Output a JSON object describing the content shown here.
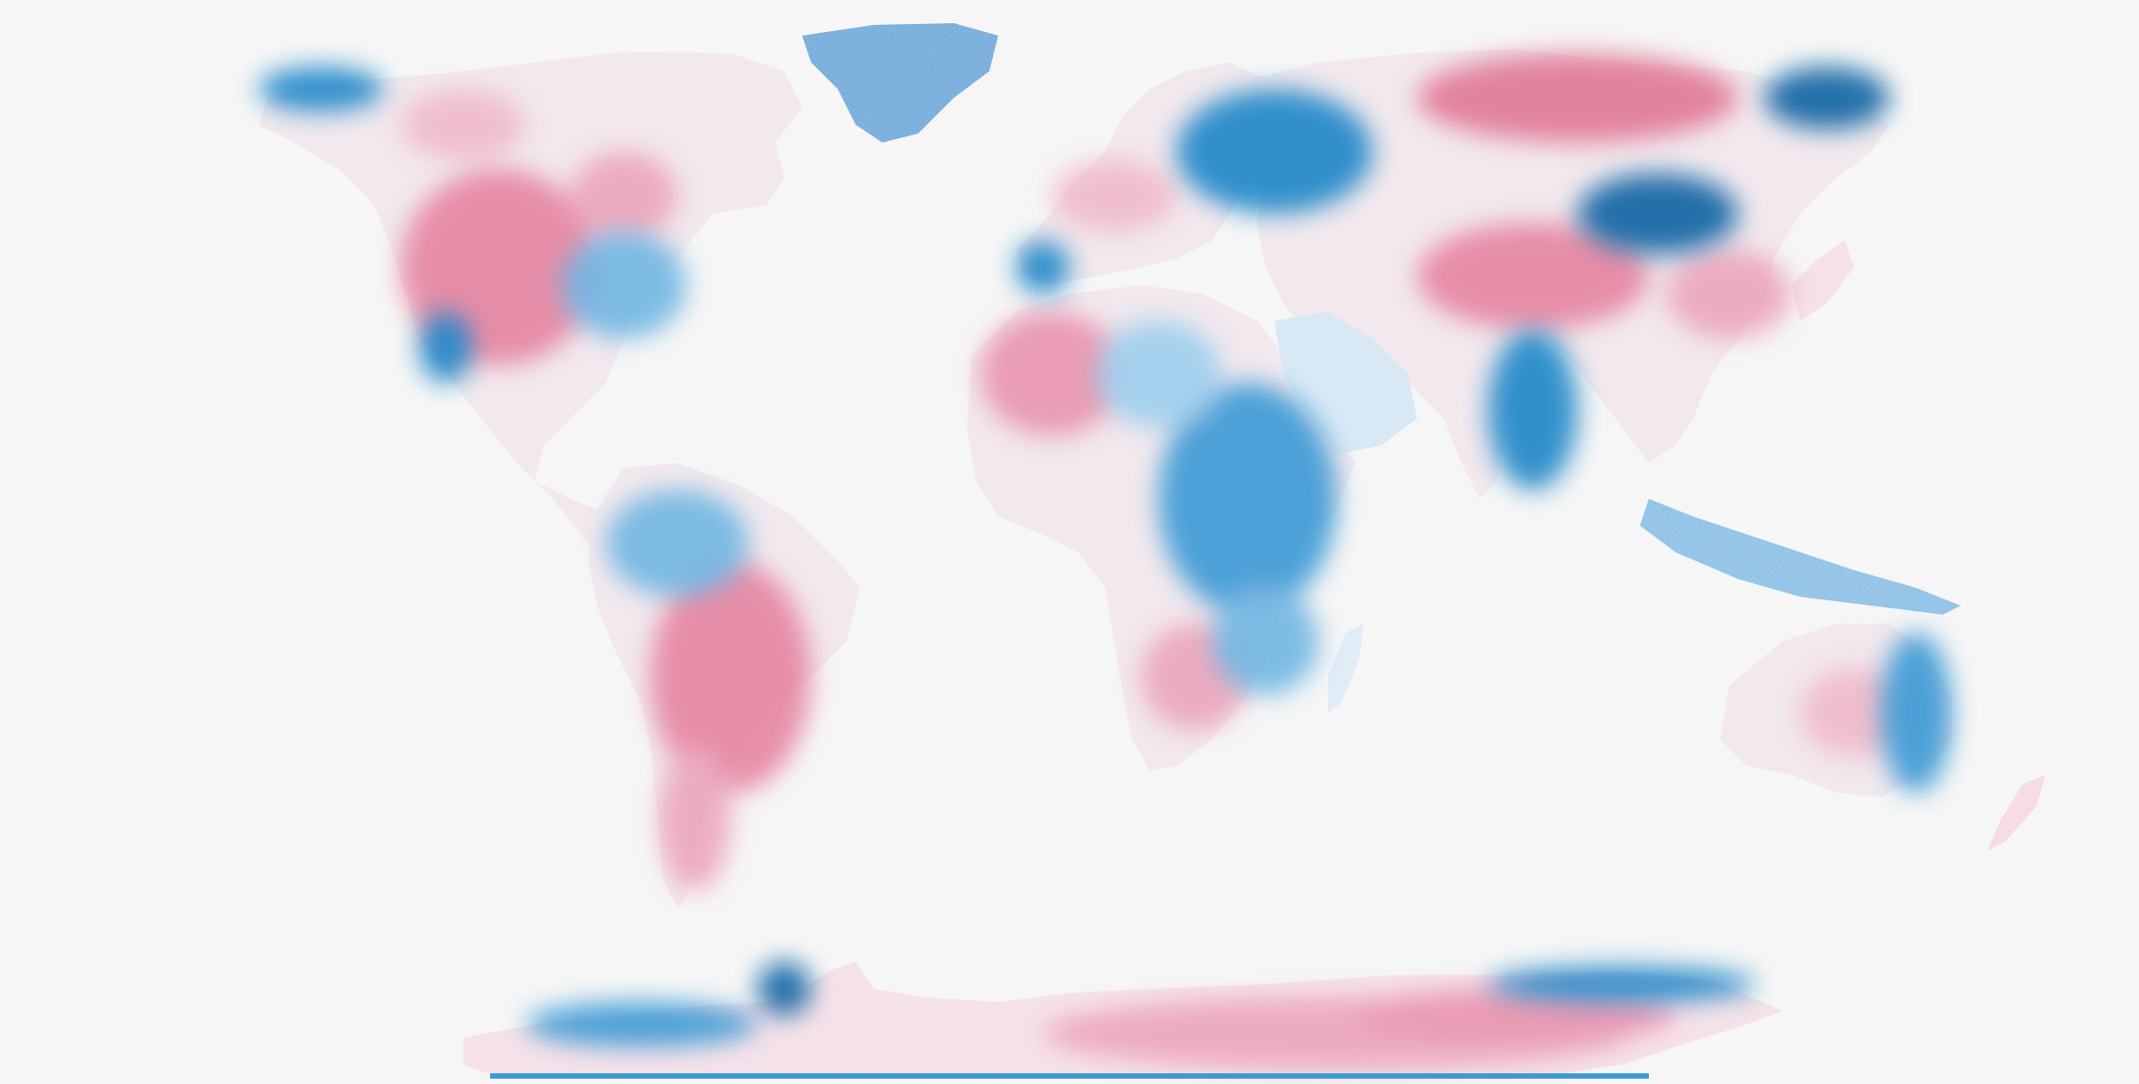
{
  "map": {
    "type": "world anomaly choropleth",
    "projection": "equirectangular",
    "colors": {
      "background": "#f6f6f6",
      "land_neutral": "#f3eef2",
      "negative_light": "#cfe6f4",
      "negative_mid": "#6fb6e3",
      "negative_strong": "#1a86c8",
      "negative_deep": "#0b63a3",
      "positive_light": "#f5d3de",
      "positive_mid": "#eba1b8",
      "positive_strong": "#e0718f"
    },
    "regions": [
      {
        "name": "north-america",
        "tone": "mixed"
      },
      {
        "name": "greenland",
        "tone": "negative"
      },
      {
        "name": "south-america",
        "tone": "mixed"
      },
      {
        "name": "europe",
        "tone": "mixed"
      },
      {
        "name": "africa",
        "tone": "mixed"
      },
      {
        "name": "asia",
        "tone": "mixed"
      },
      {
        "name": "australia",
        "tone": "mixed"
      },
      {
        "name": "antarctica",
        "tone": "mixed"
      }
    ]
  }
}
